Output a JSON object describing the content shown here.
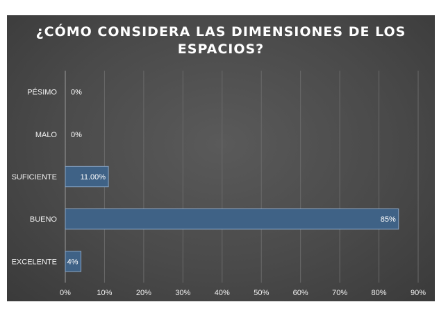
{
  "chart_data": {
    "type": "bar",
    "orientation": "horizontal",
    "title_lines": [
      "¿CÓMO CONSIDERA LAS DIMENSIONES DE LOS",
      "ESPACIOS?"
    ],
    "categories": [
      "PÉSIMO",
      "MALO",
      "SUFICIENTE",
      "BUENO",
      "EXCELENTE"
    ],
    "values": [
      0,
      0,
      11,
      85,
      4
    ],
    "data_labels": [
      "0%",
      "0%",
      "11.00%",
      "85%",
      "4%"
    ],
    "xlim": [
      0,
      90
    ],
    "x_ticks": [
      "0%",
      "10%",
      "20%",
      "30%",
      "40%",
      "50%",
      "60%",
      "70%",
      "80%",
      "90%"
    ],
    "grid": "vertical",
    "legend": "none"
  },
  "colors": {
    "bar_fill": "#3f6286",
    "bar_stroke": "#8aa6c6",
    "gridline": "#6a6a6a",
    "axis": "#9a9a9a"
  }
}
